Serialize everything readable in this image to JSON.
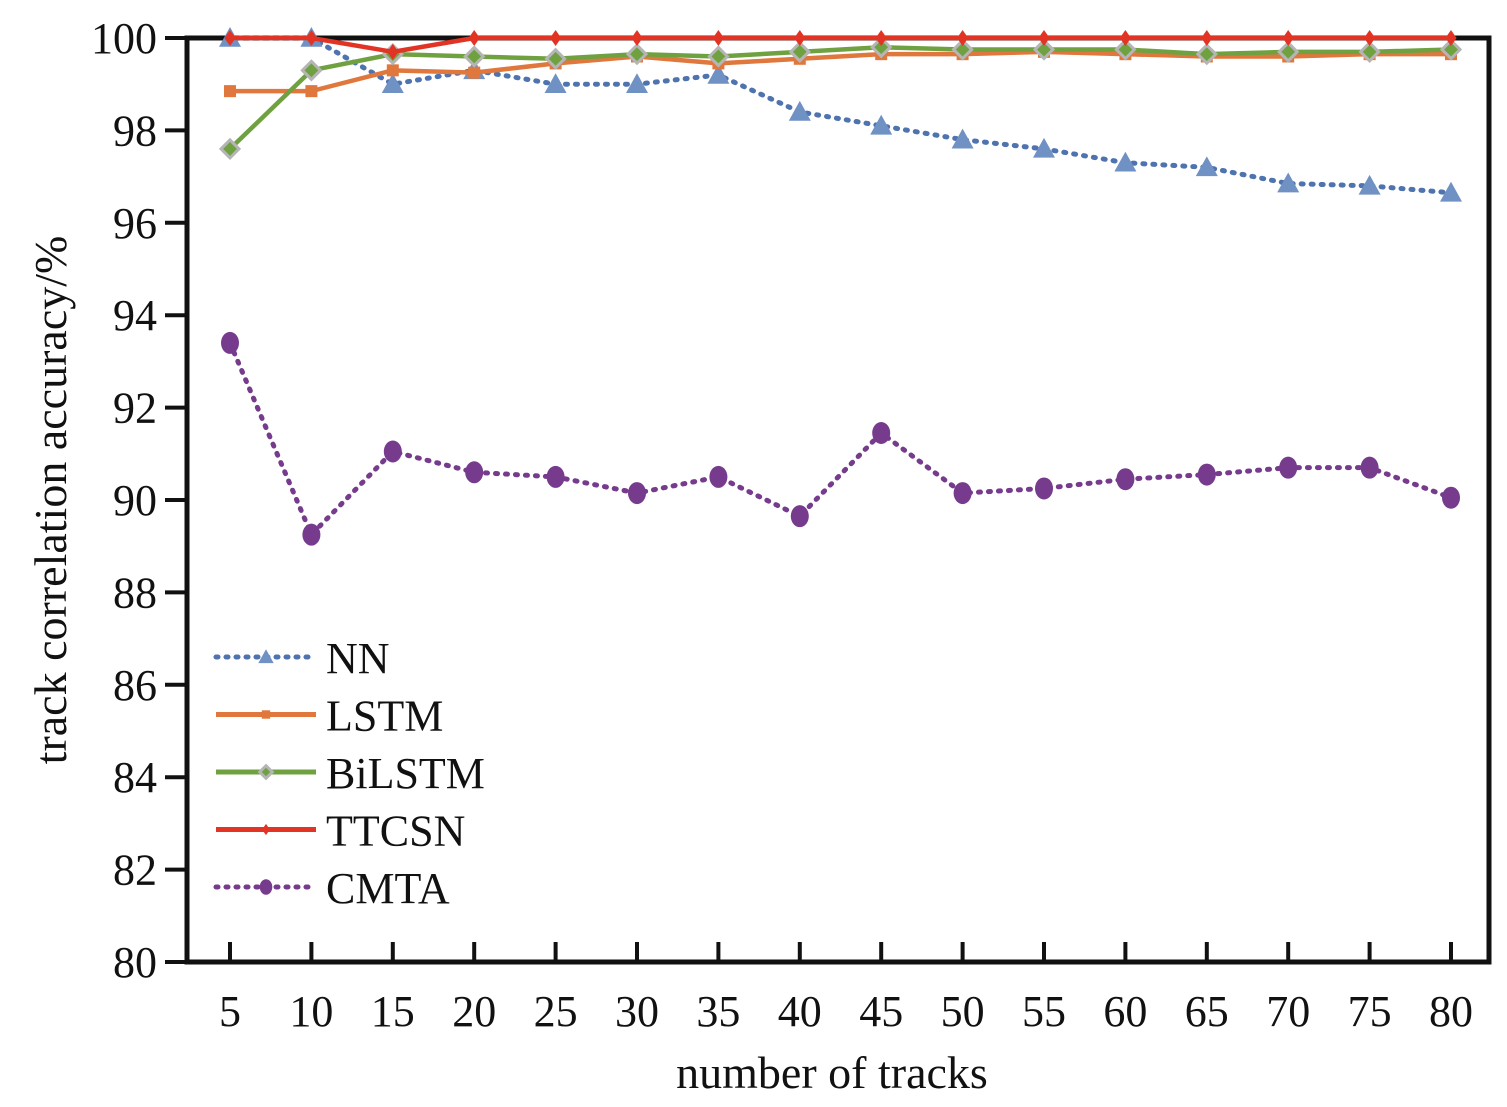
{
  "chart_data": {
    "type": "line",
    "xlabel": "number of tracks",
    "ylabel": "track correlation accuracy/%",
    "x": [
      5,
      10,
      15,
      20,
      25,
      30,
      35,
      40,
      45,
      50,
      55,
      60,
      65,
      70,
      75,
      80
    ],
    "x_ticks": [
      "5",
      "10",
      "15",
      "20",
      "25",
      "30",
      "35",
      "40",
      "45",
      "50",
      "55",
      "60",
      "65",
      "70",
      "75",
      "80"
    ],
    "ylim": [
      80,
      100
    ],
    "y_ticks": [
      "80",
      "82",
      "84",
      "86",
      "88",
      "90",
      "92",
      "94",
      "96",
      "98",
      "100"
    ],
    "grid": false,
    "legend_position": "bottom-left",
    "series": [
      {
        "name": "NN",
        "color": "#4e73ae",
        "line_style": "dotted",
        "marker": "triangle",
        "marker_color": "#7091c3",
        "values": [
          100.0,
          100.0,
          99.0,
          99.3,
          99.0,
          99.0,
          99.2,
          98.4,
          98.1,
          97.8,
          97.6,
          97.3,
          97.2,
          96.85,
          96.8,
          96.65
        ]
      },
      {
        "name": "LSTM",
        "color": "#e0773d",
        "line_style": "solid",
        "marker": "square",
        "marker_color": "#e0773d",
        "values": [
          98.85,
          98.85,
          99.3,
          99.25,
          99.45,
          99.6,
          99.45,
          99.55,
          99.65,
          99.65,
          99.7,
          99.65,
          99.6,
          99.6,
          99.65,
          99.65
        ]
      },
      {
        "name": "BiLSTM",
        "color": "#70a140",
        "line_style": "solid",
        "marker": "diamond",
        "marker_color": "#b5b5b5",
        "values": [
          97.6,
          99.3,
          99.65,
          99.6,
          99.55,
          99.65,
          99.6,
          99.7,
          99.8,
          99.75,
          99.75,
          99.75,
          99.65,
          99.7,
          99.7,
          99.75
        ]
      },
      {
        "name": "TTCSN",
        "color": "#e23424",
        "line_style": "solid",
        "marker": "small-diamond",
        "marker_color": "#e23424",
        "values": [
          100.0,
          100.0,
          99.7,
          100.0,
          100.0,
          100.0,
          100.0,
          100.0,
          100.0,
          100.0,
          100.0,
          100.0,
          100.0,
          100.0,
          100.0,
          100.0
        ]
      },
      {
        "name": "CMTA",
        "color": "#763b8c",
        "line_style": "dotted",
        "marker": "circle",
        "marker_color": "#763b8c",
        "values": [
          93.4,
          89.25,
          91.05,
          90.6,
          90.5,
          90.15,
          90.5,
          89.65,
          91.45,
          90.15,
          90.25,
          90.45,
          90.55,
          90.7,
          90.7,
          90.05
        ]
      }
    ]
  }
}
